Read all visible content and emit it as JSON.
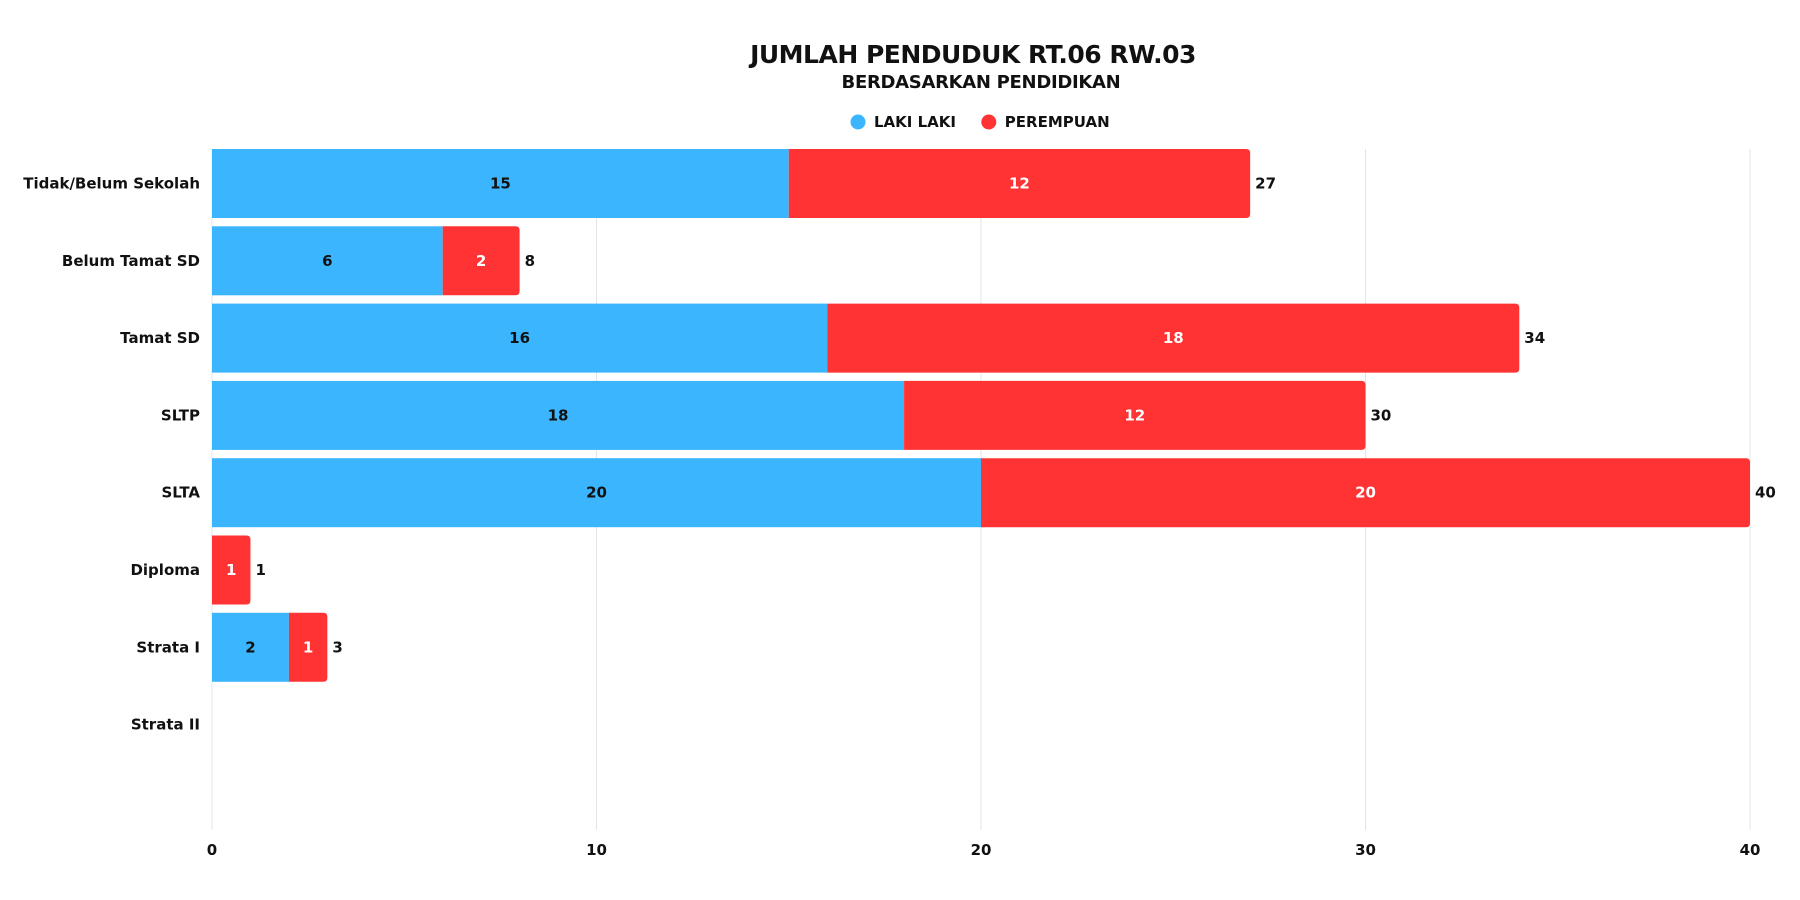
{
  "chart_data": {
    "type": "bar",
    "orientation": "horizontal",
    "stacked": true,
    "title": "JUMLAH PENDUDUK RT.06 RW.03",
    "subtitle": "BERDASARKAN PENDIDIKAN",
    "categories": [
      "Tidak/Belum Sekolah",
      "Belum Tamat SD",
      "Tamat SD",
      "SLTP",
      "SLTA",
      "Diploma",
      "Strata I",
      "Strata II"
    ],
    "series": [
      {
        "name": "LAKI LAKI",
        "color": "#3bb5fd",
        "values": [
          15,
          6,
          16,
          18,
          20,
          0,
          2,
          0
        ]
      },
      {
        "name": "PEREMPUAN",
        "color": "#ff3333",
        "values": [
          12,
          2,
          18,
          12,
          20,
          1,
          1,
          0
        ]
      }
    ],
    "totals": [
      27,
      8,
      34,
      30,
      40,
      1,
      3,
      0
    ],
    "xlim": [
      0,
      40
    ],
    "xticks": [
      0,
      10,
      20,
      30,
      40
    ],
    "xlabel": "",
    "ylabel": "",
    "grid": true,
    "legend_position": "top-center"
  }
}
